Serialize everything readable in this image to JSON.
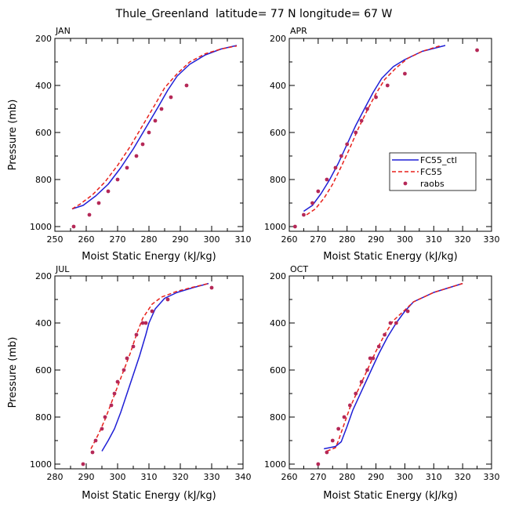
{
  "title": "Thule_Greenland  latitude= 77 N longitude= 67 W",
  "legend": {
    "entries": [
      {
        "label": "FC55_ctl",
        "color": "#1f1fd6",
        "style": "solid"
      },
      {
        "label": "FC55",
        "color": "#e8211b",
        "style": "dashed"
      },
      {
        "label": "raobs",
        "color": "#b52857",
        "style": "dot"
      }
    ]
  },
  "chart_data": [
    {
      "type": "line",
      "panel": "JAN",
      "label": "JAN",
      "xlabel": "Moist Static Energy (kJ/kg)",
      "ylabel": "Pressure (mb)",
      "xlim": [
        250,
        310
      ],
      "ylim": [
        1020,
        200
      ],
      "xticks": [
        250,
        260,
        270,
        280,
        290,
        300,
        310
      ],
      "yticks": [
        1000,
        800,
        600,
        400,
        200
      ],
      "series": [
        {
          "name": "FC55_ctl",
          "x": [
            255.5,
            259,
            263,
            267,
            271,
            275,
            279,
            283,
            286,
            289,
            293,
            298,
            303,
            308
          ],
          "y": [
            925,
            910,
            870,
            820,
            750,
            670,
            580,
            490,
            420,
            360,
            310,
            270,
            245,
            230
          ]
        },
        {
          "name": "FC55",
          "x": [
            255.5,
            258,
            262,
            266,
            270,
            274,
            278,
            282,
            285,
            289,
            293,
            298,
            303,
            308
          ],
          "y": [
            925,
            905,
            865,
            810,
            740,
            660,
            570,
            480,
            410,
            350,
            300,
            265,
            245,
            232
          ]
        },
        {
          "name": "raobs",
          "x": [
            256,
            261,
            264,
            267,
            270,
            273,
            276,
            278,
            280,
            282,
            284,
            287,
            292
          ],
          "y": [
            1000,
            950,
            900,
            850,
            800,
            750,
            700,
            650,
            600,
            550,
            500,
            450,
            400
          ]
        }
      ]
    },
    {
      "type": "line",
      "panel": "APR",
      "label": "APR",
      "xlabel": "Moist Static Energy (kJ/kg)",
      "ylabel": "",
      "xlim": [
        260,
        330
      ],
      "ylim": [
        1020,
        200
      ],
      "xticks": [
        260,
        270,
        280,
        290,
        300,
        310,
        320,
        330
      ],
      "yticks": [
        1000,
        800,
        600,
        400,
        200
      ],
      "series": [
        {
          "name": "FC55_ctl",
          "x": [
            265,
            268,
            271,
            274,
            277,
            280,
            283,
            286,
            289,
            292,
            296,
            300,
            306,
            314
          ],
          "y": [
            935,
            910,
            860,
            800,
            730,
            650,
            570,
            500,
            430,
            370,
            320,
            290,
            255,
            230
          ]
        },
        {
          "name": "FC55",
          "x": [
            266,
            269,
            272,
            275,
            278,
            281,
            284,
            287,
            290,
            293,
            297,
            301,
            306,
            312
          ],
          "y": [
            950,
            925,
            880,
            820,
            745,
            665,
            580,
            505,
            435,
            375,
            325,
            285,
            255,
            232
          ]
        },
        {
          "name": "raobs",
          "x": [
            262,
            265,
            268,
            270,
            273,
            276,
            278,
            280,
            283,
            285,
            287,
            290,
            294,
            300,
            325
          ],
          "y": [
            1000,
            950,
            900,
            850,
            800,
            750,
            700,
            650,
            600,
            550,
            500,
            450,
            400,
            350,
            250
          ]
        }
      ]
    },
    {
      "type": "line",
      "panel": "JUL",
      "label": "JUL",
      "xlabel": "Moist Static Energy (kJ/kg)",
      "ylabel": "Pressure (mb)",
      "xlim": [
        280,
        340
      ],
      "ylim": [
        1020,
        200
      ],
      "xticks": [
        280,
        290,
        300,
        310,
        320,
        330,
        340
      ],
      "yticks": [
        1000,
        800,
        600,
        400,
        200
      ],
      "series": [
        {
          "name": "FC55_ctl",
          "x": [
            295,
            297,
            299,
            301,
            303,
            305,
            307,
            309,
            310,
            312,
            315,
            319,
            324,
            329
          ],
          "y": [
            945,
            900,
            850,
            780,
            700,
            620,
            540,
            450,
            400,
            340,
            295,
            270,
            250,
            232
          ]
        },
        {
          "name": "FC55",
          "x": [
            291.5,
            294,
            296,
            298,
            300,
            302,
            304,
            306,
            308,
            311,
            314,
            319,
            324,
            329
          ],
          "y": [
            935,
            870,
            810,
            740,
            670,
            600,
            530,
            450,
            380,
            320,
            290,
            265,
            248,
            232
          ]
        },
        {
          "name": "raobs",
          "x": [
            289,
            292,
            293,
            295,
            296,
            298,
            299,
            300,
            302,
            303,
            305,
            306,
            308,
            309,
            311,
            316,
            330
          ],
          "y": [
            1000,
            950,
            900,
            850,
            800,
            750,
            700,
            650,
            600,
            550,
            500,
            450,
            400,
            400,
            350,
            300,
            250
          ]
        }
      ]
    },
    {
      "type": "line",
      "panel": "OCT",
      "label": "OCT",
      "xlabel": "Moist Static Energy (kJ/kg)",
      "ylabel": "",
      "xlim": [
        260,
        330
      ],
      "ylim": [
        1020,
        200
      ],
      "xticks": [
        260,
        270,
        280,
        290,
        300,
        310,
        320,
        330
      ],
      "yticks": [
        1000,
        800,
        600,
        400,
        200
      ],
      "series": [
        {
          "name": "FC55_ctl",
          "x": [
            272,
            276,
            278,
            280,
            282,
            285,
            288,
            291,
            294,
            297,
            300,
            303,
            310,
            320
          ],
          "y": [
            935,
            925,
            905,
            840,
            770,
            690,
            610,
            530,
            460,
            400,
            350,
            310,
            270,
            232
          ]
        },
        {
          "name": "FC55",
          "x": [
            273,
            276,
            277,
            279,
            281,
            284,
            287,
            290,
            293,
            296,
            300,
            303,
            310,
            320
          ],
          "y": [
            945,
            930,
            900,
            830,
            760,
            680,
            600,
            520,
            450,
            390,
            345,
            310,
            270,
            232
          ]
        },
        {
          "name": "raobs",
          "x": [
            270,
            273,
            275,
            277,
            279,
            281,
            283,
            285,
            287,
            288,
            289,
            291,
            293,
            295,
            297,
            301
          ],
          "y": [
            1000,
            950,
            900,
            850,
            800,
            750,
            700,
            650,
            600,
            550,
            550,
            500,
            450,
            400,
            400,
            350
          ]
        }
      ]
    }
  ]
}
